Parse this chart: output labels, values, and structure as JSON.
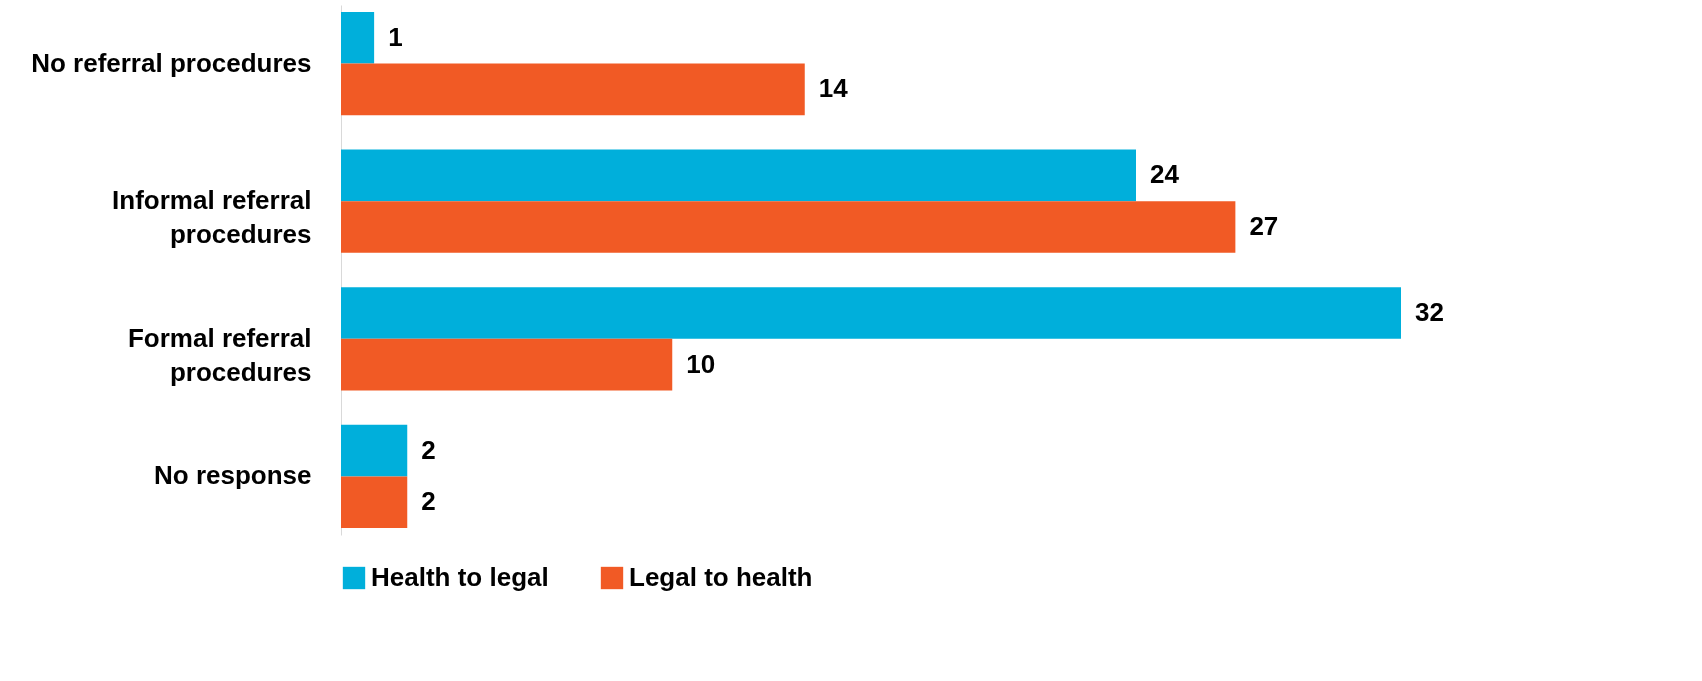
{
  "chart_data": {
    "type": "bar",
    "orientation": "horizontal",
    "categories": [
      "No referral procedures",
      "Informal referral procedures",
      "Formal referral procedures",
      "No response"
    ],
    "series": [
      {
        "name": "Health to legal",
        "color": "#00afdb",
        "values": [
          1,
          24,
          32,
          2
        ]
      },
      {
        "name": "Legal to health",
        "color": "#f15a25",
        "values": [
          14,
          27,
          10,
          2
        ]
      }
    ],
    "data_labels": true,
    "legend": "bottom",
    "grid": false
  }
}
